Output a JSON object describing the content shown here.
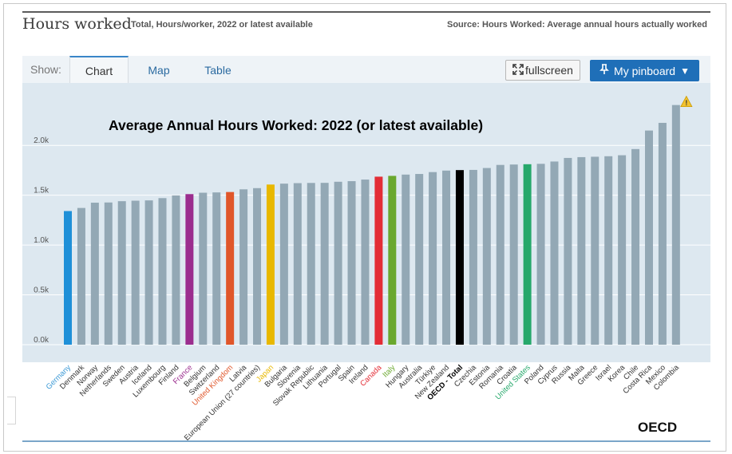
{
  "header": {
    "title": "Hours worked",
    "subtitle": "Total, Hours/worker, 2022 or latest available",
    "source": "Source: Hours Worked: Average annual hours actually worked"
  },
  "toolbar": {
    "show_label": "Show:",
    "tabs": [
      {
        "label": "Chart",
        "active": true
      },
      {
        "label": "Map",
        "active": false
      },
      {
        "label": "Table",
        "active": false
      }
    ],
    "fullscreen_label": "fullscreen",
    "pinboard_label": "My pinboard",
    "pinboard_caret": "▼"
  },
  "footer": {
    "logo_text": "OECD"
  },
  "icons": {
    "fullscreen": "fullscreen-icon",
    "pin": "pin-icon",
    "warning": "warning-icon"
  },
  "colors": {
    "plot_bg": "#dde8f0",
    "default_bar": "#93a8b5",
    "highlight_primary": "#1f90d8",
    "warning": "#f2c230"
  },
  "chart_data": {
    "type": "bar",
    "title": "Average Annual Hours Worked: 2022 (or latest available)",
    "xlabel": "",
    "ylabel": "",
    "ylim": [
      0,
      2450
    ],
    "yticks": [
      0,
      500,
      1000,
      1500,
      2000
    ],
    "ytick_labels": [
      "0.0k",
      "0.5k",
      "1.0k",
      "1.5k",
      "2.0k"
    ],
    "grid": true,
    "categories": [
      "Germany",
      "Denmark",
      "Norway",
      "Netherlands",
      "Sweden",
      "Austria",
      "Iceland",
      "Luxembourg",
      "Finland",
      "France",
      "Belgium",
      "Switzerland",
      "United Kingdom",
      "Latvia",
      "European Union (27 countries)",
      "Japan",
      "Bulgaria",
      "Slovenia",
      "Slovak Republic",
      "Lithuania",
      "Portugal",
      "Spain",
      "Ireland",
      "Canada",
      "Italy",
      "Hungary",
      "Australia",
      "Türkiye",
      "New Zealand",
      "OECD - Total",
      "Czechia",
      "Estonia",
      "Romania",
      "Croatia",
      "United States",
      "Poland",
      "Cyprus",
      "Russia",
      "Malta",
      "Greece",
      "Israel",
      "Korea",
      "Chile",
      "Costa Rica",
      "Mexico",
      "Colombia"
    ],
    "values": [
      1341,
      1372,
      1425,
      1427,
      1440,
      1445,
      1448,
      1471,
      1498,
      1511,
      1525,
      1528,
      1532,
      1559,
      1571,
      1607,
      1616,
      1621,
      1623,
      1624,
      1635,
      1641,
      1657,
      1686,
      1694,
      1707,
      1713,
      1732,
      1747,
      1752,
      1754,
      1773,
      1804,
      1808,
      1811,
      1815,
      1838,
      1874,
      1882,
      1886,
      1891,
      1901,
      1963,
      2149,
      2226,
      2405
    ],
    "bar_colors": [
      "#1f90d8",
      null,
      null,
      null,
      null,
      null,
      null,
      null,
      null,
      "#9b2d8e",
      null,
      null,
      "#e0562a",
      null,
      null,
      "#e8b800",
      null,
      null,
      null,
      null,
      null,
      null,
      null,
      "#e32d36",
      "#6aa82e",
      null,
      null,
      null,
      null,
      "#000000",
      null,
      null,
      null,
      null,
      "#26a86b",
      null,
      null,
      null,
      null,
      null,
      null,
      null,
      null,
      null,
      null,
      null
    ],
    "label_colors": [
      "#3d9ad6",
      null,
      null,
      null,
      null,
      null,
      null,
      null,
      null,
      "#9b2d8e",
      null,
      null,
      "#e0562a",
      null,
      null,
      "#e8b800",
      null,
      null,
      null,
      null,
      null,
      null,
      null,
      "#e32d36",
      "#6aa82e",
      null,
      null,
      null,
      null,
      "#000000",
      null,
      null,
      null,
      null,
      "#26a86b",
      null,
      null,
      null,
      null,
      null,
      null,
      null,
      null,
      null,
      null,
      null
    ],
    "bold_labels": [
      "OECD - Total"
    ],
    "warning_on": "Colombia"
  }
}
